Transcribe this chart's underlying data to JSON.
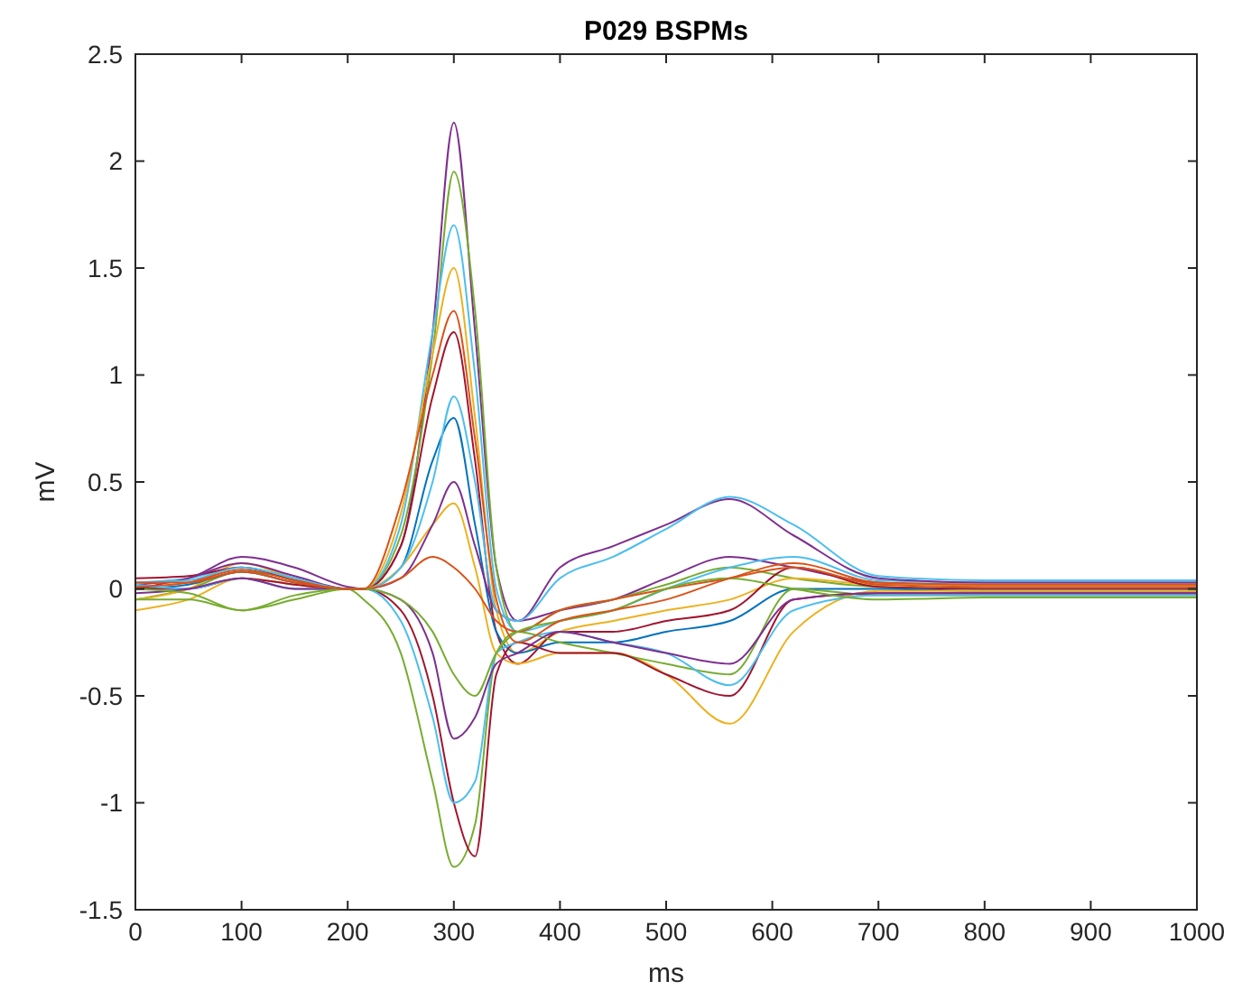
{
  "chart_data": {
    "type": "line",
    "title": "P029 BSPMs",
    "xlabel": "ms",
    "ylabel": "mV",
    "xlim": [
      0,
      1000
    ],
    "xticks": [
      0,
      100,
      200,
      300,
      400,
      500,
      600,
      700,
      800,
      900,
      1000
    ],
    "ylim": [
      -1.5,
      2.5
    ],
    "yticks": [
      -1.5,
      -1,
      -0.5,
      0,
      0.5,
      1,
      1.5,
      2,
      2.5
    ],
    "grid": false,
    "marker": "none",
    "line_style": "solid",
    "x": [
      0,
      50,
      100,
      150,
      200,
      215,
      250,
      280,
      300,
      320,
      340,
      360,
      400,
      450,
      500,
      560,
      620,
      700,
      800,
      1000
    ],
    "series": [
      {
        "color": "#7e2f8e",
        "values": [
          0.02,
          0.05,
          0.15,
          0.1,
          0.01,
          0,
          0.2,
          1.2,
          2.18,
          1.2,
          0.1,
          -0.15,
          -0.1,
          -0.05,
          0.05,
          0.15,
          0.1,
          0.03,
          0.02,
          0.02
        ]
      },
      {
        "color": "#77ac30",
        "values": [
          -0.05,
          0,
          0.08,
          0.05,
          0,
          0,
          0.25,
          1.1,
          1.95,
          1.3,
          0.1,
          -0.2,
          -0.1,
          -0.05,
          0.02,
          0.1,
          0.05,
          0.01,
          0,
          0
        ]
      },
      {
        "color": "#4dbeee",
        "values": [
          0.03,
          0.05,
          0.1,
          0.05,
          0,
          0,
          0.3,
          1.2,
          1.7,
          1,
          0,
          -0.2,
          -0.15,
          -0.1,
          0,
          0.1,
          0.15,
          0.04,
          0.03,
          0.03
        ]
      },
      {
        "color": "#edb120",
        "values": [
          -0.05,
          0,
          0.12,
          0.05,
          0,
          0,
          0.35,
          1.1,
          1.5,
          0.8,
          -0.1,
          -0.3,
          -0.2,
          -0.15,
          -0.1,
          -0.05,
          0.05,
          0.02,
          0.02,
          0.02
        ]
      },
      {
        "color": "#a2142f",
        "values": [
          0.05,
          0.06,
          0.1,
          0.04,
          0,
          0,
          0.2,
          0.9,
          1.2,
          0.6,
          -0.2,
          -0.35,
          -0.2,
          -0.2,
          -0.15,
          -0.1,
          0.1,
          0.01,
          0,
          0
        ]
      },
      {
        "color": "#0072bd",
        "values": [
          0,
          0.02,
          0.08,
          0.03,
          0,
          0,
          0.1,
          0.6,
          0.8,
          0.3,
          -0.2,
          -0.3,
          -0.25,
          -0.25,
          -0.2,
          -0.15,
          0,
          0,
          -0.01,
          -0.01
        ]
      },
      {
        "color": "#edb120",
        "values": [
          -0.1,
          -0.05,
          0.05,
          0.02,
          0,
          0,
          0.1,
          0.3,
          0.4,
          0.1,
          -0.3,
          -0.35,
          -0.3,
          -0.3,
          -0.4,
          -0.63,
          -0.2,
          -0.01,
          -0.01,
          -0.01
        ]
      },
      {
        "color": "#77ac30",
        "values": [
          -0.05,
          -0.05,
          -0.1,
          -0.05,
          0,
          -0.05,
          -0.3,
          -0.9,
          -1.3,
          -1.1,
          -0.3,
          -0.2,
          -0.25,
          -0.3,
          -0.35,
          -0.4,
          0,
          -0.03,
          -0.03,
          -0.03
        ]
      },
      {
        "color": "#a2142f",
        "values": [
          0,
          0,
          0.05,
          0.02,
          0,
          0,
          -0.1,
          -0.5,
          -1,
          -1.25,
          -0.4,
          -0.25,
          -0.3,
          -0.3,
          -0.4,
          -0.5,
          -0.05,
          -0.02,
          -0.02,
          -0.02
        ]
      },
      {
        "color": "#4dbeee",
        "values": [
          0.02,
          0,
          0.05,
          0,
          0,
          0,
          -0.15,
          -0.6,
          -1,
          -0.9,
          -0.3,
          -0.25,
          -0.2,
          -0.25,
          -0.3,
          -0.45,
          -0.1,
          -0.03,
          -0.03,
          -0.03
        ]
      },
      {
        "color": "#7e2f8e",
        "values": [
          0,
          0.05,
          0.12,
          0.06,
          0,
          0,
          0.05,
          0.3,
          0.5,
          0.2,
          -0.1,
          -0.15,
          0.1,
          0.2,
          0.3,
          0.42,
          0.25,
          0.05,
          0.03,
          0.03
        ]
      },
      {
        "color": "#4dbeee",
        "values": [
          0.03,
          0.04,
          0.1,
          0.05,
          0,
          0,
          0.1,
          0.5,
          0.9,
          0.5,
          -0.1,
          -0.15,
          0.05,
          0.15,
          0.28,
          0.43,
          0.3,
          0.06,
          0.04,
          0.04
        ]
      },
      {
        "color": "#7e2f8e",
        "values": [
          -0.02,
          0,
          0.05,
          0,
          0,
          0,
          -0.05,
          -0.3,
          -0.7,
          -0.6,
          -0.35,
          -0.3,
          -0.2,
          -0.25,
          -0.3,
          -0.35,
          -0.05,
          -0.02,
          -0.02,
          -0.02
        ]
      },
      {
        "color": "#d95319",
        "values": [
          0.03,
          0.03,
          0.08,
          0.03,
          0,
          0,
          0.05,
          0.15,
          0.1,
          0,
          -0.15,
          -0.2,
          -0.1,
          -0.05,
          0,
          0.05,
          0.1,
          0.02,
          0.01,
          0.01
        ]
      },
      {
        "color": "#77ac30",
        "values": [
          0,
          -0.02,
          -0.1,
          -0.03,
          0,
          0,
          -0.05,
          -0.2,
          -0.4,
          -0.5,
          -0.3,
          -0.2,
          -0.15,
          -0.1,
          0,
          0.05,
          0,
          -0.05,
          -0.04,
          -0.04
        ]
      },
      {
        "color": "#d95319",
        "values": [
          0.01,
          0.03,
          0.09,
          0.04,
          0,
          0,
          0.4,
          1.0,
          1.3,
          0.7,
          -0.05,
          -0.25,
          -0.15,
          -0.1,
          -0.05,
          0.05,
          0.12,
          0.03,
          0.02,
          0.02
        ]
      }
    ]
  }
}
